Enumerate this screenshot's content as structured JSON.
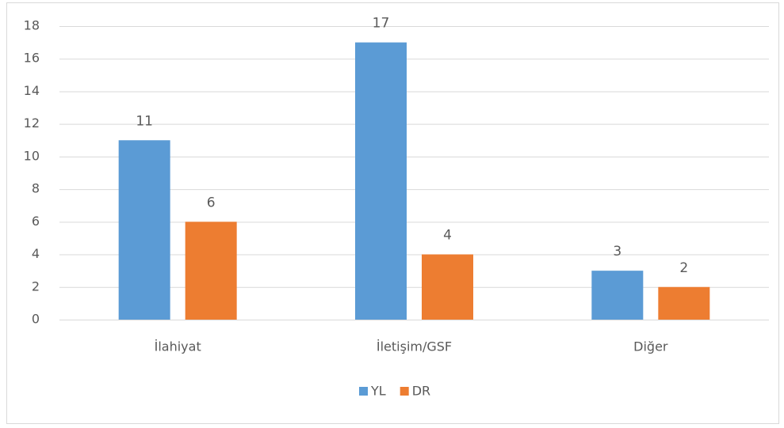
{
  "chart_data": {
    "type": "bar",
    "categories": [
      "İlahiyat",
      "İletişim/GSF",
      "Diğer"
    ],
    "series": [
      {
        "name": "YL",
        "color": "#5b9bd5",
        "values": [
          11,
          17,
          3
        ]
      },
      {
        "name": "DR",
        "color": "#ed7d31",
        "values": [
          6,
          4,
          2
        ]
      }
    ],
    "ylim": [
      0,
      18
    ],
    "yticks": [
      0,
      2,
      4,
      6,
      8,
      10,
      12,
      14,
      16,
      18
    ],
    "grid": true,
    "legend": "bottom"
  }
}
